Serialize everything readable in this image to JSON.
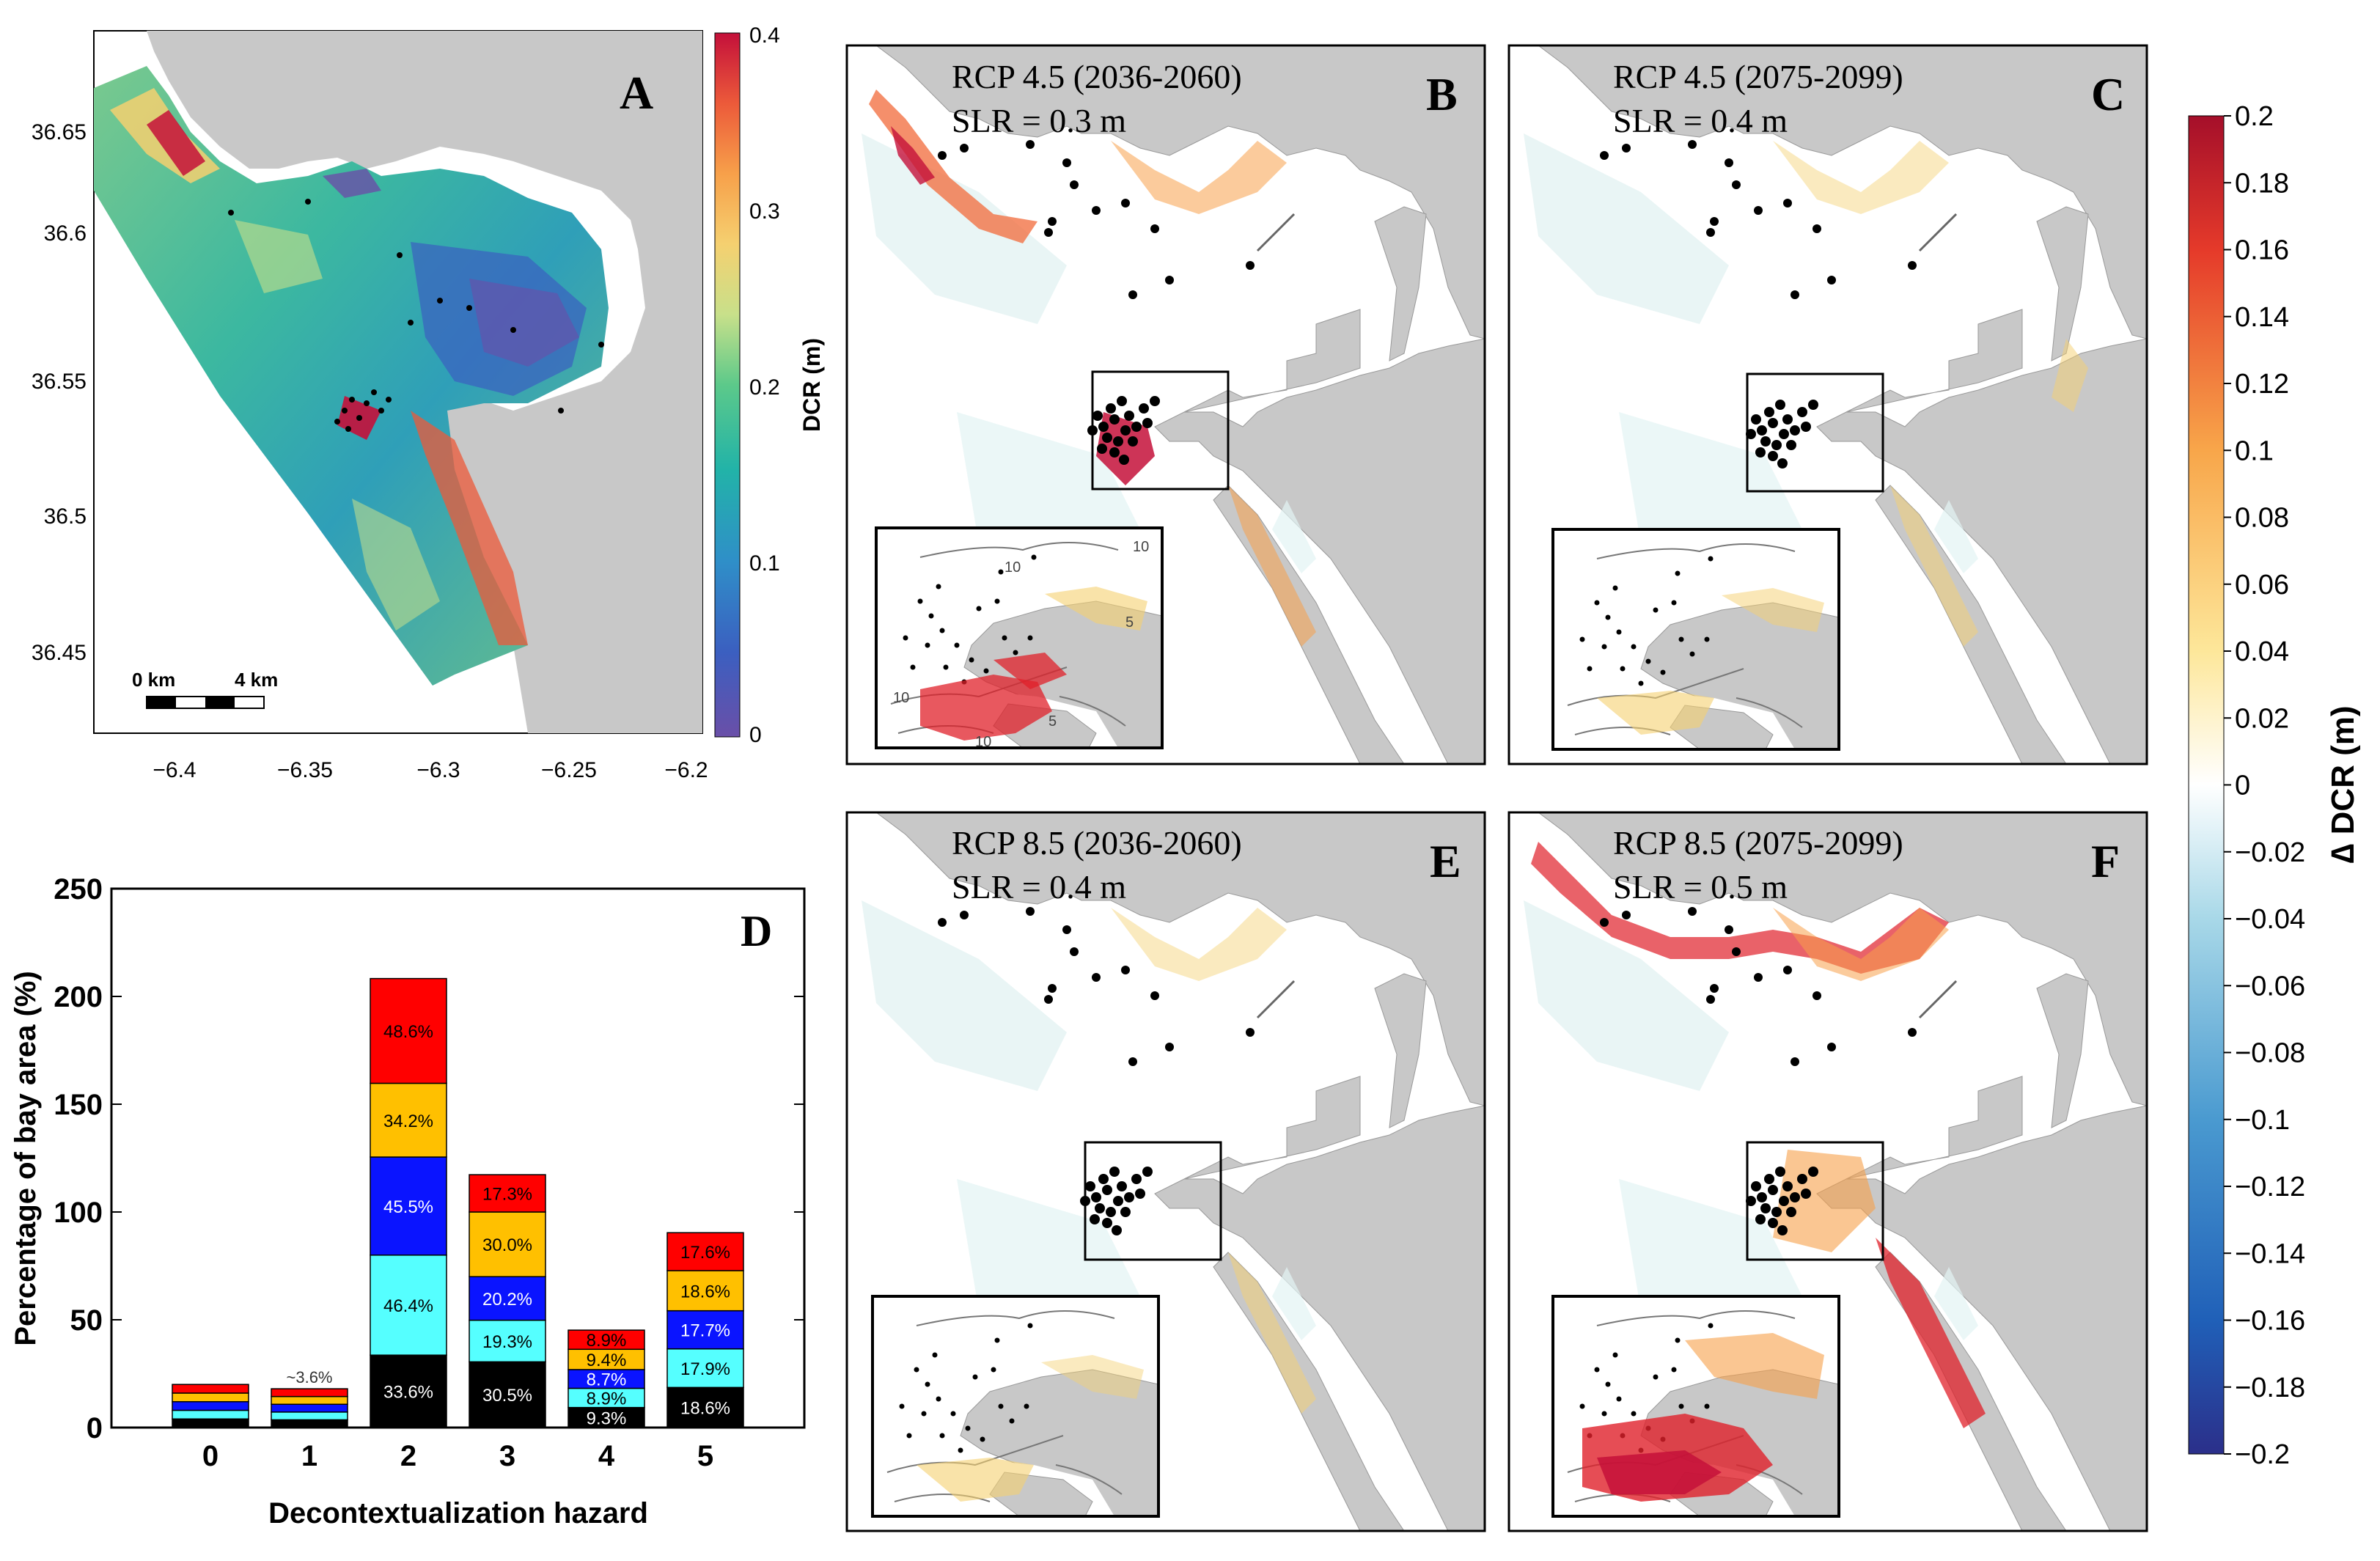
{
  "panel_a": {
    "letter": "A",
    "y_ticks": [
      "36.65",
      "36.6",
      "36.55",
      "36.5",
      "36.45"
    ],
    "x_ticks": [
      "−6.4",
      "−6.35",
      "−6.3",
      "−6.25",
      "−6.2"
    ],
    "scalebar": {
      "label_left": "0 km",
      "label_right": "4 km"
    },
    "colorbar": {
      "label": "DCR (m)",
      "ticks": [
        "0.4",
        "0.3",
        "0.2",
        "0.1",
        "0"
      ],
      "min": 0,
      "max": 0.4
    }
  },
  "maps": [
    {
      "letter": "B",
      "scenario": "RCP 4.5 (2036-2060)",
      "slr": "SLR = 0.3 m"
    },
    {
      "letter": "C",
      "scenario": "RCP 4.5 (2075-2099)",
      "slr": "SLR = 0.4 m"
    },
    {
      "letter": "E",
      "scenario": "RCP 8.5 (2036-2060)",
      "slr": "SLR = 0.4 m"
    },
    {
      "letter": "F",
      "scenario": "RCP 8.5 (2075-2099)",
      "slr": "SLR = 0.5 m"
    }
  ],
  "inset_contours": [
    "10",
    "10",
    "10",
    "5",
    "5",
    "10"
  ],
  "delta_colorbar": {
    "label": "∆ DCR (m)",
    "ticks": [
      "0.2",
      "0.18",
      "0.16",
      "0.14",
      "0.12",
      "0.1",
      "0.08",
      "0.06",
      "0.04",
      "0.02",
      "0",
      "−0.02",
      "−0.04",
      "−0.06",
      "−0.08",
      "−0.1",
      "−0.12",
      "−0.14",
      "−0.16",
      "−0.18",
      "−0.2"
    ],
    "min": -0.2,
    "max": 0.2
  },
  "chart_data": {
    "type": "bar",
    "letter": "D",
    "title": "",
    "xlabel": "Decontextualization hazard",
    "ylabel": "Percentage of bay area (%)",
    "ylim": [
      0,
      250
    ],
    "yticks": [
      "0",
      "50",
      "100",
      "150",
      "200",
      "250"
    ],
    "categories": [
      "0",
      "1",
      "2",
      "3",
      "4",
      "5"
    ],
    "stack_colors": [
      "#000000",
      "#55ffff",
      "#0a14ff",
      "#ffc000",
      "#ff0000"
    ],
    "stacks": [
      {
        "segments": [
          4,
          4,
          4,
          4,
          4
        ],
        "labels": [
          "",
          "",
          "",
          "",
          ""
        ]
      },
      {
        "segments": [
          3.6,
          3.6,
          3.6,
          3.6,
          3.6
        ],
        "labels": [
          "",
          "",
          "",
          "",
          ""
        ],
        "note": "~3.6%"
      },
      {
        "segments": [
          33.6,
          46.4,
          45.5,
          34.2,
          48.6
        ],
        "labels": [
          "33.6%",
          "46.4%",
          "45.5%",
          "34.2%",
          "48.6%"
        ]
      },
      {
        "segments": [
          30.5,
          19.3,
          20.2,
          30.0,
          17.3
        ],
        "labels": [
          "30.5%",
          "19.3%",
          "20.2%",
          "30.0%",
          "17.3%"
        ]
      },
      {
        "segments": [
          9.3,
          8.9,
          8.7,
          9.4,
          8.9
        ],
        "labels": [
          "9.3%",
          "8.9%",
          "8.7%",
          "9.4%",
          "8.9%"
        ]
      },
      {
        "segments": [
          18.6,
          17.9,
          17.7,
          18.6,
          17.6
        ],
        "labels": [
          "18.6%",
          "17.9%",
          "17.7%",
          "18.6%",
          "17.6%"
        ]
      }
    ]
  }
}
